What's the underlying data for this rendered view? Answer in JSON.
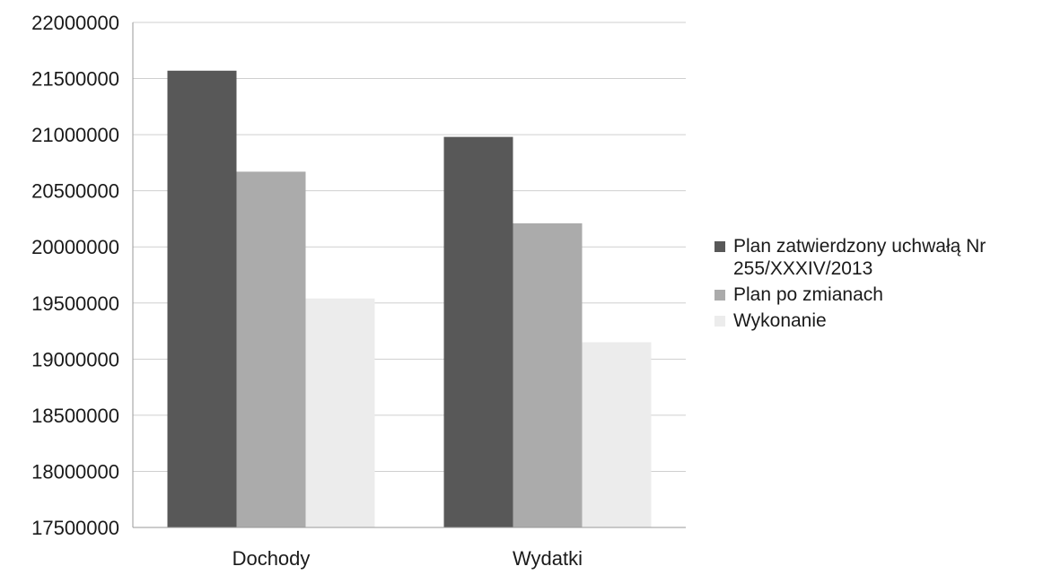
{
  "chart_data": {
    "type": "bar",
    "categories": [
      "Dochody",
      "Wydatki"
    ],
    "series": [
      {
        "name": "Plan zatwierdzony uchwałą Nr 255/XXXIV/2013",
        "values": [
          21570000,
          20980000
        ],
        "color": "#585858"
      },
      {
        "name": "Plan po zmianach",
        "values": [
          20670000,
          20210000
        ],
        "color": "#ababab"
      },
      {
        "name": "Wykonanie",
        "values": [
          19540000,
          19150000
        ],
        "color": "#ececec"
      }
    ],
    "ylim": [
      17500000,
      22000000
    ],
    "yticks": [
      "22000000",
      "21500000",
      "21000000",
      "20500000",
      "20000000",
      "19500000",
      "19000000",
      "18500000",
      "18000000",
      "17500000"
    ],
    "title": "",
    "xlabel": "",
    "ylabel": "",
    "grid": true,
    "legend_position": "right"
  }
}
